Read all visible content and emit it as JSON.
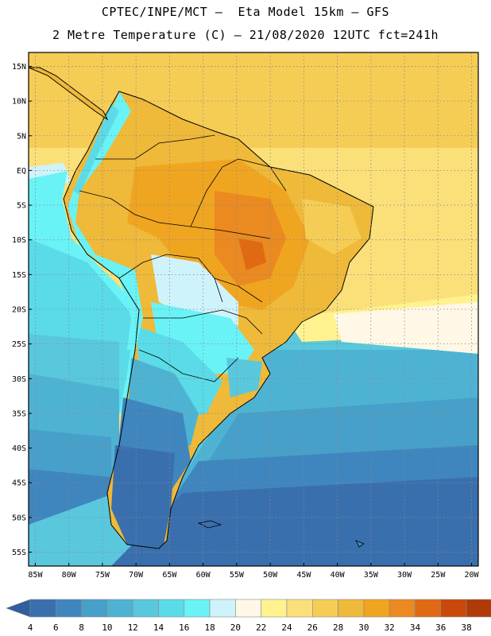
{
  "header": {
    "line1": "CPTEC/INPE/MCT –  Eta Model 15km – GFS",
    "line2": "2 Metre Temperature (C) – 21/08/2020 12UTC fct=241h"
  },
  "map": {
    "region": "South America",
    "lat_labels": [
      "15N",
      "10N",
      "5N",
      "EQ",
      "5S",
      "10S",
      "15S",
      "20S",
      "25S",
      "30S",
      "35S",
      "40S",
      "45S",
      "50S",
      "55S"
    ],
    "lon_labels": [
      "85W",
      "80W",
      "75W",
      "70W",
      "65W",
      "60W",
      "55W",
      "50W",
      "45W",
      "40W",
      "35W",
      "30W",
      "25W",
      "20W"
    ]
  },
  "colorbar": {
    "labels": [
      "4",
      "6",
      "8",
      "10",
      "12",
      "14",
      "16",
      "18",
      "20",
      "22",
      "24",
      "26",
      "28",
      "30",
      "32",
      "34",
      "36",
      "38"
    ],
    "colors": [
      "#3a6fae",
      "#3f86be",
      "#46a0c9",
      "#4eb3d3",
      "#59c8dd",
      "#5bdbe8",
      "#6af3f6",
      "#cff3fb",
      "#fff8e6",
      "#fff28f",
      "#fbe07a",
      "#f5cd55",
      "#efb93a",
      "#f0a520",
      "#ea8a20",
      "#e06a14",
      "#c9480a",
      "#b03a08"
    ],
    "low_arrow_color": "#2f5f9e",
    "high_arrow_color": "#a0360c"
  }
}
